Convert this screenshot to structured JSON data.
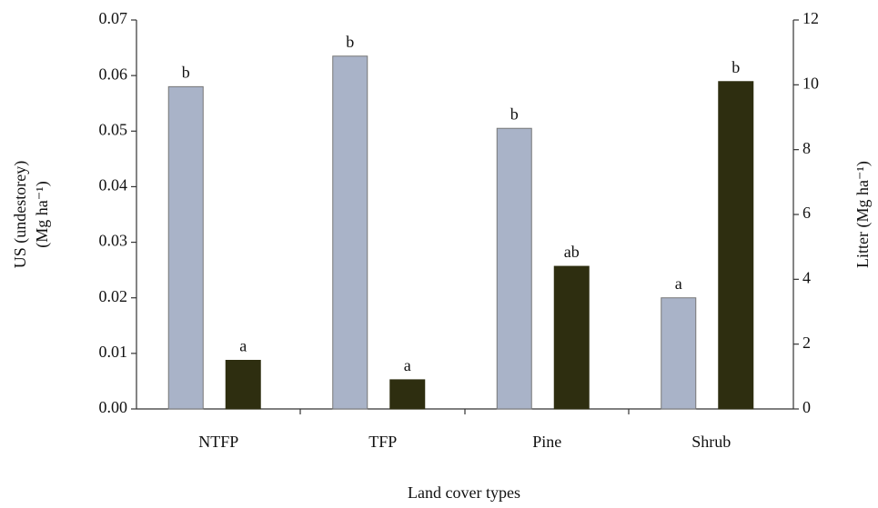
{
  "chart_data": {
    "type": "bar",
    "xlabel": "Land cover types",
    "ylabel": [
      "US (undestorey)",
      "(Mg ha⁻¹)"
    ],
    "y2label": "Litter (Mg ha⁻¹)",
    "categories": [
      "NTFP",
      "TFP",
      "Pine",
      "Shrub"
    ],
    "series": [
      {
        "color": "#a9b3c8",
        "values": [
          0.058,
          0.0635,
          0.0505,
          0.02
        ],
        "letters": [
          "b",
          "b",
          "b",
          "a"
        ]
      },
      {
        "color": "#2e2e10",
        "axis": "y2",
        "values": [
          1.5,
          0.9,
          4.4,
          10.1
        ],
        "letters": [
          "a",
          "a",
          "ab",
          "b"
        ]
      }
    ],
    "ylim": [
      0,
      0.07
    ],
    "yticks": [
      {
        "value": 0,
        "label": "0.00"
      },
      0.01,
      0.02,
      0.03,
      0.04,
      0.05,
      0.06,
      0.07
    ],
    "y2lim": [
      0,
      12
    ],
    "y2ticks": [
      0,
      2,
      4,
      6,
      8,
      10,
      12
    ],
    "grid": false
  }
}
